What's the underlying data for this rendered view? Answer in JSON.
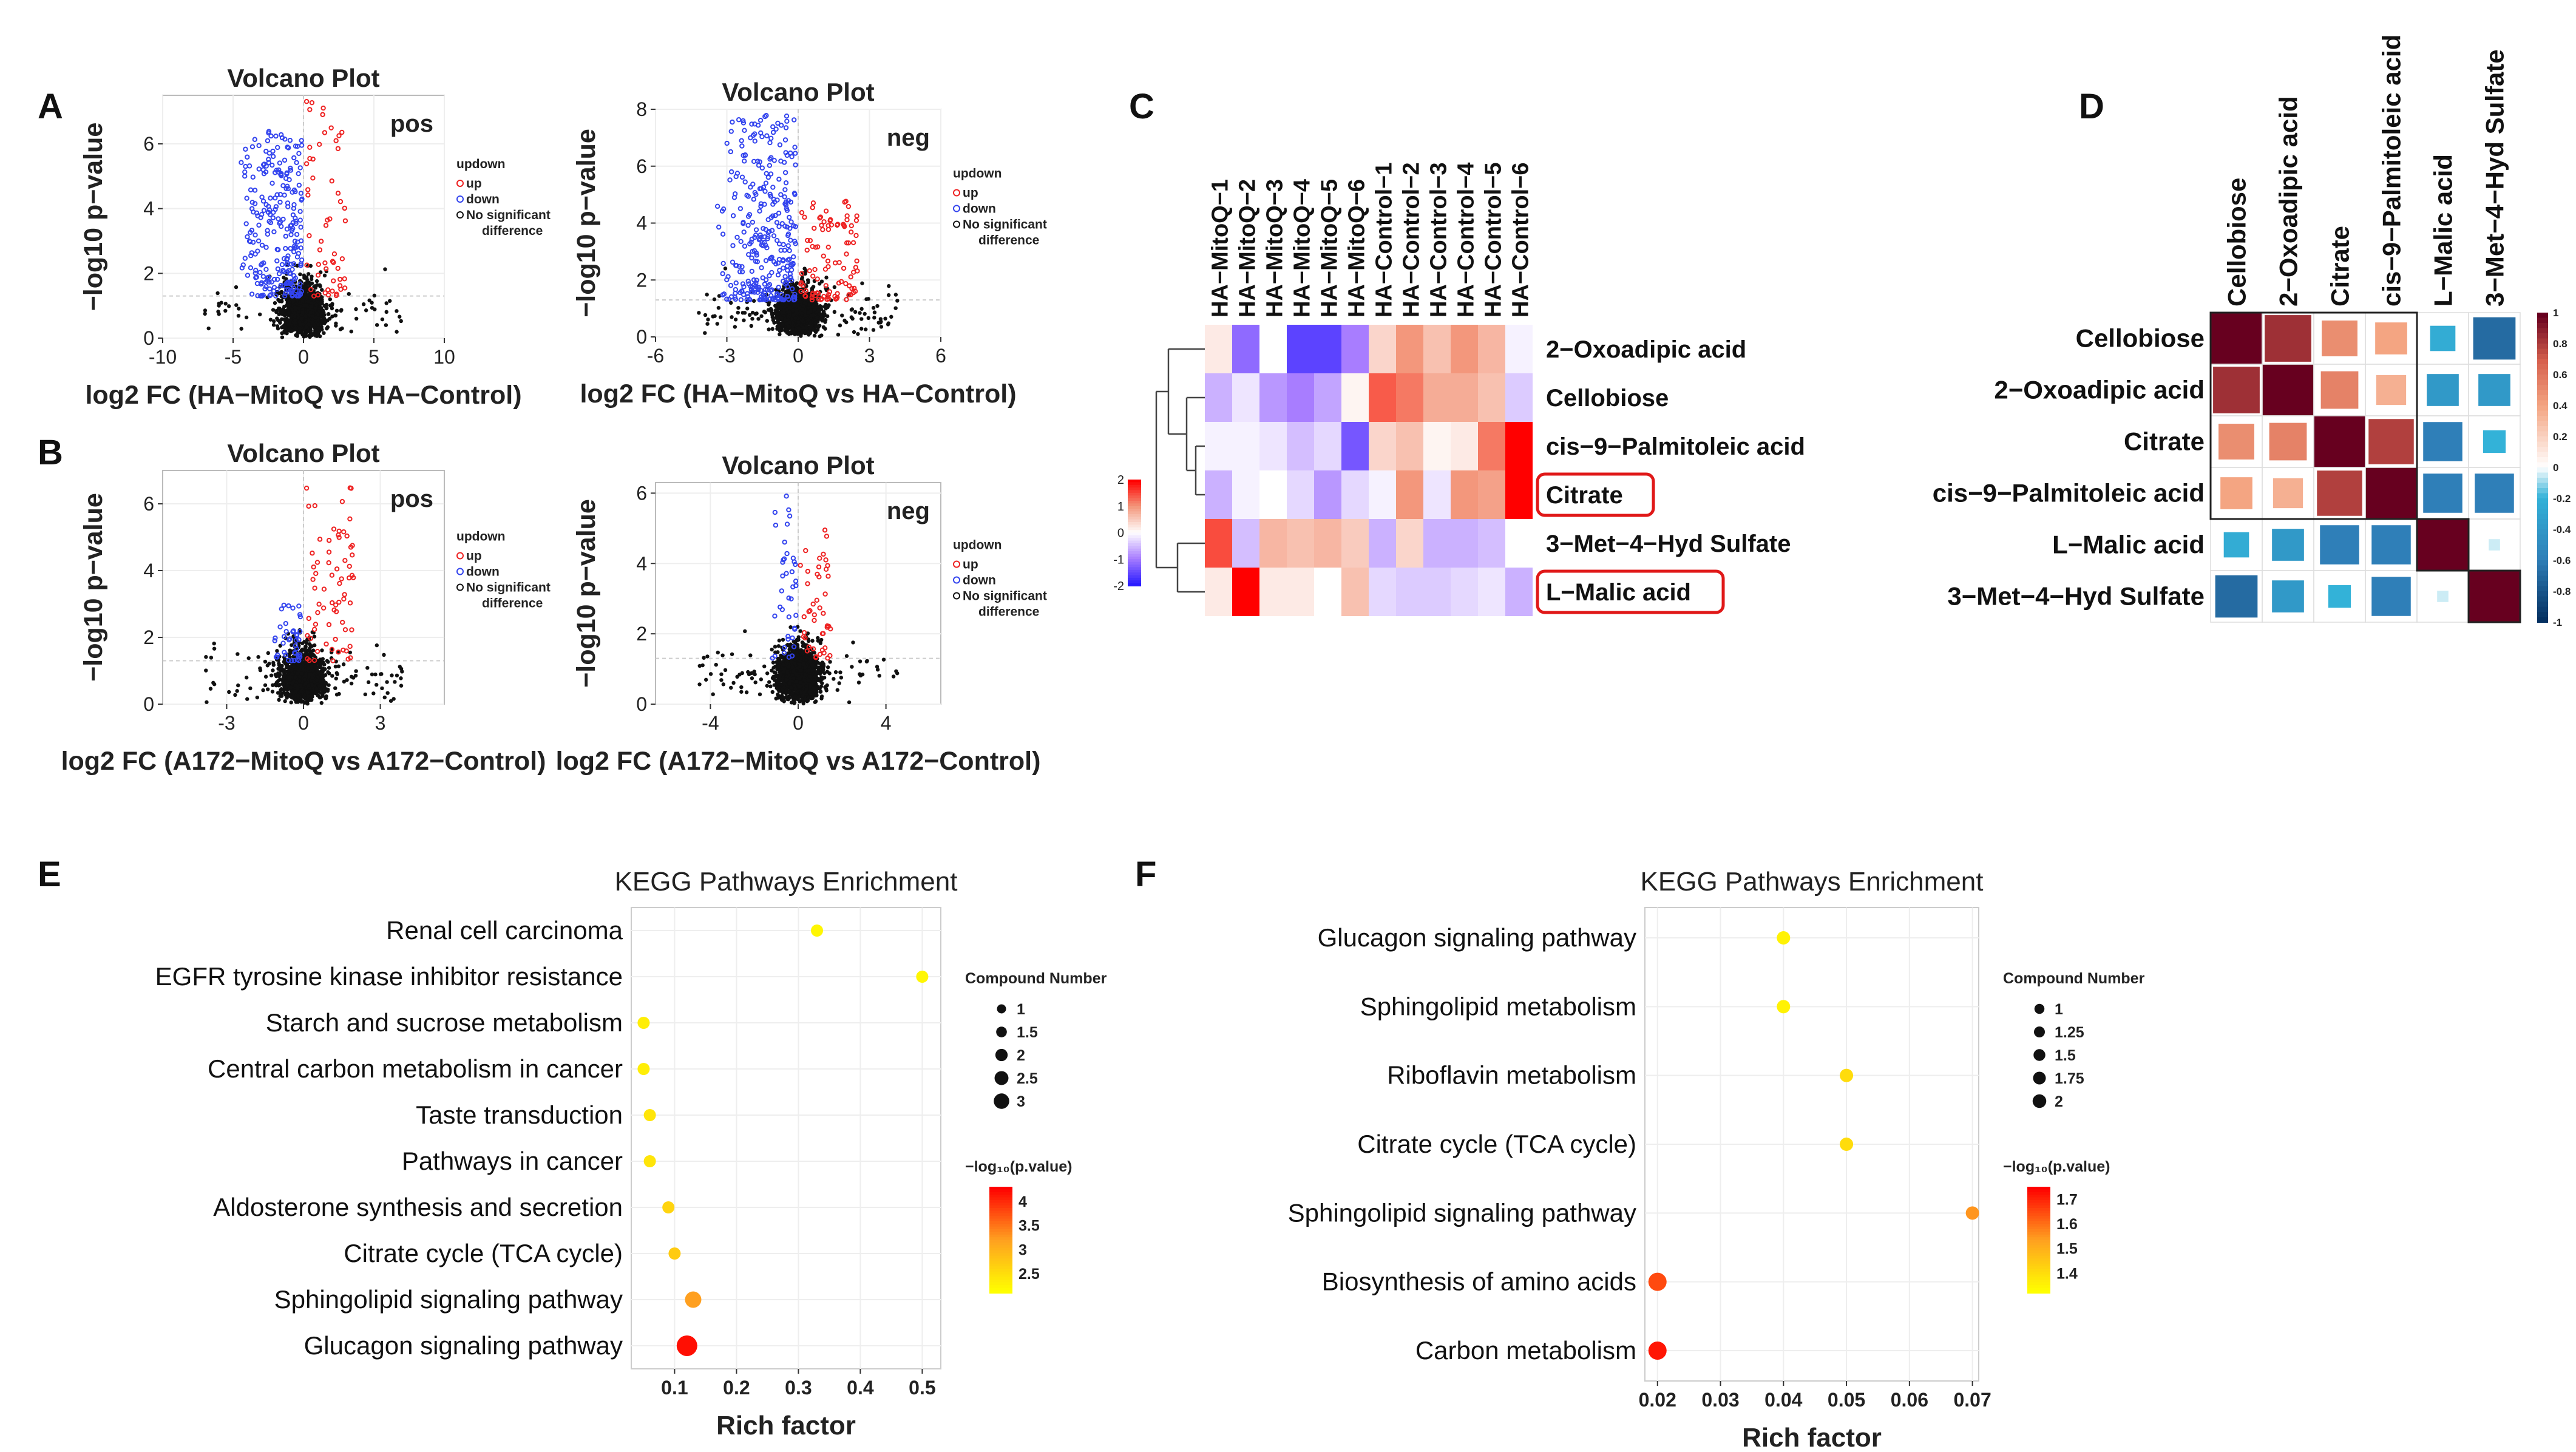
{
  "panel_labels": [
    "A",
    "B",
    "C",
    "D",
    "E",
    "F"
  ],
  "chart_data": [
    {
      "id": "A-pos",
      "type": "scatter",
      "title": "Volcano Plot",
      "tag": "pos",
      "xlabel": "log2 FC (HA−MitoQ vs HA−Control)",
      "ylabel": "−log10 p−value",
      "xlim": [
        -10,
        10
      ],
      "ylim": [
        0,
        7.5
      ],
      "xticks": [
        -10,
        -5,
        0,
        5,
        10
      ],
      "yticks": [
        0,
        2,
        4,
        6
      ],
      "legend_title": "updown",
      "legend": [
        "up",
        "down",
        "No significant difference"
      ],
      "counts": {
        "up": 55,
        "down": 260,
        "ns": 1100
      },
      "spread": {
        "up": [
          0.1,
          3
        ],
        "down": [
          -4.5,
          -0.1
        ],
        "ymax": [
          7.4,
          6.4
        ]
      },
      "points": []
    },
    {
      "id": "A-neg",
      "type": "scatter",
      "title": "Volcano Plot",
      "tag": "neg",
      "xlabel": "log2 FC (HA−MitoQ vs HA−Control)",
      "ylabel": "−log10 p−value",
      "xlim": [
        -6,
        6
      ],
      "ylim": [
        0,
        8
      ],
      "xticks": [
        -6,
        -3,
        0,
        3,
        6
      ],
      "yticks": [
        0,
        2,
        4,
        6,
        8
      ],
      "legend_title": "updown",
      "legend": [
        "up",
        "down",
        "No significant difference"
      ],
      "counts": {
        "up": 100,
        "down": 320,
        "ns": 1400
      },
      "spread": {
        "up": [
          0.1,
          2.5
        ],
        "down": [
          -3.5,
          -0.1
        ],
        "ymax": [
          4.8,
          7.8
        ]
      },
      "points": []
    },
    {
      "id": "B-pos",
      "type": "scatter",
      "title": "Volcano Plot",
      "tag": "pos",
      "xlabel": "log2 FC (A172−MitoQ vs A172−Control)",
      "ylabel": "−log10 p−value",
      "xlim": [
        -5.5,
        5.5
      ],
      "ylim": [
        0,
        7
      ],
      "xticks": [
        -3,
        0,
        3
      ],
      "yticks": [
        0,
        2,
        4,
        6
      ],
      "legend_title": "updown",
      "legend": [
        "up",
        "down",
        "No significant difference"
      ],
      "counts": {
        "up": 70,
        "down": 40,
        "ns": 1200
      },
      "spread": {
        "up": [
          0.1,
          2
        ],
        "down": [
          -1.2,
          -0.1
        ],
        "ymax": [
          6.5,
          3
        ]
      },
      "points": []
    },
    {
      "id": "B-neg",
      "type": "scatter",
      "title": "Volcano Plot",
      "tag": "neg",
      "xlabel": "log2 FC (A172−MitoQ vs A172−Control)",
      "ylabel": "−log10 p−value",
      "xlim": [
        -6.5,
        6.5
      ],
      "ylim": [
        0,
        6.3
      ],
      "xticks": [
        -4,
        0,
        4
      ],
      "yticks": [
        0,
        2,
        4,
        6
      ],
      "legend_title": "updown",
      "legend": [
        "up",
        "down",
        "No significant difference"
      ],
      "counts": {
        "up": 45,
        "down": 40,
        "ns": 1300
      },
      "spread": {
        "up": [
          0.1,
          1.5
        ],
        "down": [
          -1.3,
          -0.1
        ],
        "ymax": [
          5,
          6
        ]
      },
      "points": []
    },
    {
      "id": "C",
      "type": "heatmap",
      "columns": [
        "HA−MitoQ−1",
        "HA−MitoQ−2",
        "HA−MitoQ−3",
        "HA−MitoQ−4",
        "HA−MitoQ−5",
        "HA−MitoQ−6",
        "HA−Control−1",
        "HA−Control−2",
        "HA−Control−3",
        "HA−Control−4",
        "HA−Control−5",
        "HA−Control−6"
      ],
      "rows": [
        "2−Oxoadipic acid",
        "Cellobiose",
        "cis−9−Palmitoleic acid",
        "Citrate",
        "3−Met−4−Hyd Sulfate",
        "L−Malic acid"
      ],
      "highlighted_rows": [
        "Citrate",
        "L−Malic acid"
      ],
      "values": [
        [
          0.2,
          -1.2,
          0,
          -1.6,
          -1.6,
          -1.0,
          0.4,
          1.0,
          0.6,
          1.0,
          0.7,
          -0.1
        ],
        [
          -0.6,
          -0.2,
          -0.8,
          -1.0,
          -0.7,
          0.1,
          1.4,
          1.2,
          0.8,
          0.8,
          0.6,
          -0.4
        ],
        [
          -0.1,
          -0.1,
          -0.2,
          -0.5,
          -0.3,
          -1.4,
          0.4,
          0.6,
          0.1,
          0.2,
          1.2,
          2.2
        ],
        [
          -0.6,
          -0.1,
          0,
          -0.3,
          -0.8,
          -0.3,
          -0.1,
          1.0,
          -0.2,
          1.0,
          0.9,
          2.0
        ],
        [
          1.5,
          -0.5,
          0.7,
          0.6,
          0.7,
          0.5,
          -0.6,
          0.4,
          -0.6,
          -0.6,
          -0.5,
          0
        ],
        [
          0.2,
          2.3,
          0.2,
          0.2,
          0,
          0.6,
          -0.3,
          -0.4,
          -0.4,
          -0.3,
          -0.2,
          -0.6
        ]
      ],
      "legend_ticks": [
        2,
        1,
        0,
        -1,
        -2
      ],
      "color_range": [
        -2,
        2
      ]
    },
    {
      "id": "D",
      "type": "heatmap",
      "subtype": "correlation",
      "labels": [
        "Cellobiose",
        "2−Oxoadipic acid",
        "Citrate",
        "cis−9−Palmitoleic acid",
        "L−Malic acid",
        "3−Met−4−Hyd Sulfate"
      ],
      "matrix": [
        [
          1,
          0.85,
          0.5,
          0.4,
          -0.25,
          -0.7
        ],
        [
          0.85,
          1,
          0.55,
          0.35,
          -0.4,
          -0.4
        ],
        [
          0.5,
          0.55,
          1,
          0.8,
          -0.6,
          -0.2
        ],
        [
          0.4,
          0.35,
          0.8,
          1,
          -0.6,
          -0.6
        ],
        [
          -0.25,
          -0.4,
          -0.6,
          -0.6,
          1,
          -0.05
        ],
        [
          -0.7,
          -0.4,
          -0.2,
          -0.6,
          -0.05,
          1
        ]
      ],
      "legend_ticks": [
        1,
        0.8,
        0.6,
        0.4,
        0.2,
        0,
        -0.2,
        -0.4,
        -0.6,
        -0.8,
        -1
      ]
    },
    {
      "id": "E",
      "type": "scatter",
      "subtype": "bubble",
      "title": "KEGG Pathways Enrichment",
      "xlabel": "Rich factor",
      "xticks": [
        0.1,
        0.2,
        0.3,
        0.4,
        0.5
      ],
      "xlim": [
        0.03,
        0.53
      ],
      "pathways": [
        "Renal cell carcinoma",
        "EGFR tyrosine kinase inhibitor resistance",
        "Starch and sucrose metabolism",
        "Central carbon metabolism in cancer",
        "Taste transduction",
        "Pathways in cancer",
        "Aldosterone synthesis and secretion",
        "Citrate cycle (TCA cycle)",
        "Sphingolipid signaling pathway",
        "Glucagon signaling pathway"
      ],
      "rich_factor": [
        0.33,
        0.5,
        0.05,
        0.05,
        0.06,
        0.06,
        0.09,
        0.1,
        0.13,
        0.12
      ],
      "compound_number": [
        1,
        1,
        1,
        1,
        1,
        1,
        1,
        1,
        2,
        3
      ],
      "neg_log10_p": [
        2.2,
        2.2,
        2.3,
        2.3,
        2.4,
        2.4,
        2.6,
        2.7,
        3.2,
        4.2
      ],
      "size_legend_title": "Compound Number",
      "size_legend": [
        1.0,
        1.5,
        2.0,
        2.5,
        3.0
      ],
      "color_legend_title": "−log₁₀(p.value)",
      "color_ticks": [
        4.0,
        3.5,
        3.0,
        2.5
      ],
      "color_range": [
        2.1,
        4.3
      ]
    },
    {
      "id": "F",
      "type": "scatter",
      "subtype": "bubble",
      "title": "KEGG Pathways Enrichment",
      "xlabel": "Rich factor",
      "xticks": [
        0.02,
        0.03,
        0.04,
        0.05,
        0.06,
        0.07
      ],
      "xlim": [
        0.018,
        0.071
      ],
      "pathways": [
        "Glucagon signaling pathway",
        "Sphingolipid metabolism",
        "Riboflavin metabolism",
        "Citrate cycle (TCA cycle)",
        "Sphingolipid signaling pathway",
        "Biosynthesis of amino acids",
        "Carbon metabolism"
      ],
      "rich_factor": [
        0.04,
        0.04,
        0.05,
        0.05,
        0.07,
        0.02,
        0.02
      ],
      "compound_number": [
        1,
        1,
        1,
        1,
        1,
        2,
        2
      ],
      "neg_log10_p": [
        1.35,
        1.35,
        1.4,
        1.4,
        1.55,
        1.65,
        1.72
      ],
      "size_legend_title": "Compound Number",
      "size_legend": [
        1.0,
        1.25,
        1.5,
        1.75,
        2.0
      ],
      "color_legend_title": "−log₁₀(p.value)",
      "color_ticks": [
        1.7,
        1.6,
        1.5,
        1.4
      ],
      "color_range": [
        1.32,
        1.75
      ]
    }
  ]
}
